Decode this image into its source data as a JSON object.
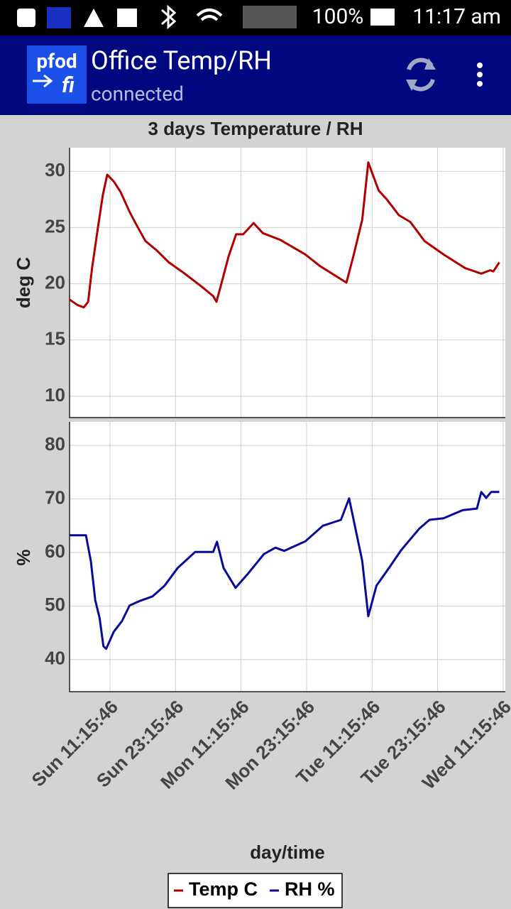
{
  "status_bar": {
    "battery": "100%",
    "time": "11:17 am"
  },
  "app_bar": {
    "logo_top": "pfod",
    "logo_bottom": "fi",
    "title": "Office Temp/RH",
    "subtitle": "connected"
  },
  "chart_data": [
    {
      "type": "line",
      "title": "3 days Temperature / RH",
      "y_label": "deg C",
      "xlim": [
        -7.4,
        72.4
      ],
      "ylim": [
        8.1,
        32.1
      ],
      "yticks": [
        10,
        15,
        20,
        25,
        30
      ],
      "grid": true,
      "x": [
        -7.4,
        -5.9,
        -4.8,
        -4.0,
        -3.3,
        -2.2,
        -1.3,
        -0.5,
        0.7,
        1.9,
        3.6,
        4.9,
        6.5,
        8.5,
        10.8,
        13.7,
        16.9,
        18.9,
        19.5,
        20.4,
        21.7,
        23.1,
        24.4,
        26.3,
        28.0,
        31.2,
        35.8,
        38.4,
        43.3,
        44.6,
        46.2,
        47.3,
        49.2,
        50.7,
        52.9,
        55.0,
        57.6,
        61.1,
        65.0,
        68.0,
        69.6,
        70.2,
        71.3
      ],
      "series": [
        {
          "name": "Temp C",
          "color": "#b00000",
          "values": [
            18.6,
            18.1,
            17.9,
            18.4,
            21.3,
            25.0,
            27.9,
            29.7,
            29.1,
            28.2,
            26.4,
            25.2,
            23.8,
            23.0,
            21.9,
            20.9,
            19.7,
            18.9,
            18.4,
            20.0,
            22.4,
            24.4,
            24.4,
            25.4,
            24.5,
            23.9,
            22.6,
            21.6,
            20.1,
            22.5,
            25.7,
            30.8,
            28.3,
            27.5,
            26.1,
            25.5,
            23.8,
            22.6,
            21.4,
            20.9,
            21.2,
            21.1,
            21.9
          ]
        }
      ]
    },
    {
      "type": "line",
      "y_label": "%",
      "x_label": "day/time",
      "xlim": [
        -7.4,
        72.4
      ],
      "ylim": [
        34.0,
        84.4
      ],
      "yticks": [
        40,
        50,
        60,
        70,
        80
      ],
      "grid": true,
      "xticks": [
        {
          "value": 0,
          "label": "Sun 11:15:46"
        },
        {
          "value": 12,
          "label": "Sun 23:15:46"
        },
        {
          "value": 24,
          "label": "Mon 11:15:46"
        },
        {
          "value": 36,
          "label": "Mon 23:15:46"
        },
        {
          "value": 48,
          "label": "Tue 11:15:46"
        },
        {
          "value": 60,
          "label": "Tue 23:15:46"
        },
        {
          "value": 72,
          "label": "Wed 11:15:46"
        }
      ],
      "x": [
        -7.4,
        -4.4,
        -3.5,
        -2.7,
        -1.9,
        -1.2,
        -0.7,
        0.7,
        2.2,
        3.6,
        5.6,
        7.8,
        10.0,
        12.4,
        15.6,
        18.9,
        19.6,
        20.8,
        23.0,
        25.4,
        28.2,
        30.3,
        31.9,
        35.8,
        39.0,
        42.3,
        43.8,
        46.2,
        47.3,
        48.8,
        51.1,
        53.3,
        56.6,
        58.5,
        61.1,
        64.6,
        67.2,
        68.0,
        68.9,
        69.8,
        71.3
      ],
      "series": [
        {
          "name": "RH %",
          "color": "#0a0a9a",
          "values": [
            63.2,
            63.2,
            58.4,
            51.1,
            47.8,
            42.5,
            42.0,
            45.2,
            47.2,
            50.1,
            51.0,
            51.8,
            53.8,
            57.1,
            60.1,
            60.1,
            62.0,
            57.1,
            53.4,
            56.2,
            59.7,
            60.9,
            60.3,
            62.1,
            65.0,
            66.1,
            70.1,
            58.4,
            48.1,
            53.8,
            57.1,
            60.4,
            64.4,
            66.1,
            66.4,
            67.9,
            68.2,
            71.3,
            70.2,
            71.3,
            71.3
          ]
        }
      ]
    }
  ]
}
